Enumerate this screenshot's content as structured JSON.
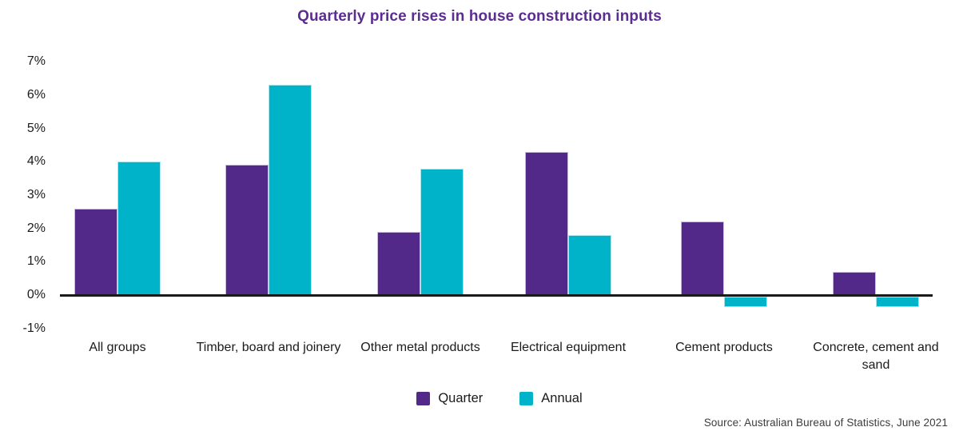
{
  "chart_data": {
    "type": "bar",
    "title": "Quarterly price rises in house construction inputs",
    "xlabel": "",
    "ylabel": "",
    "categories": [
      "All groups",
      "Timber, board and joinery",
      "Other metal products",
      "Electrical equipment",
      "Cement products",
      "Concrete, cement and sand"
    ],
    "series": [
      {
        "name": "Quarter",
        "color": "#522989",
        "values": [
          2.6,
          3.9,
          1.9,
          4.3,
          2.2,
          0.7
        ]
      },
      {
        "name": "Annual",
        "color": "#00b3c8",
        "values": [
          4.0,
          6.3,
          3.8,
          1.8,
          -0.3,
          -0.3
        ]
      }
    ],
    "ylim": [
      -1,
      7
    ],
    "yticks": {
      "values": [
        7,
        6,
        5,
        4,
        3,
        2,
        1,
        0,
        -1
      ],
      "labels": [
        "7%",
        "6%",
        "5%",
        "4%",
        "3%",
        "2%",
        "1%",
        "0%",
        "-1%"
      ]
    },
    "grid": false,
    "legend_position": "bottom"
  },
  "source": {
    "text": "Source: Australian Bureau of Statistics, June 2021"
  },
  "colors": {
    "title": "#5b2d91",
    "quarter": "#522989",
    "annual": "#00b3c8",
    "axis_line": "#1a1a1a",
    "text": "#1a1a1a"
  }
}
